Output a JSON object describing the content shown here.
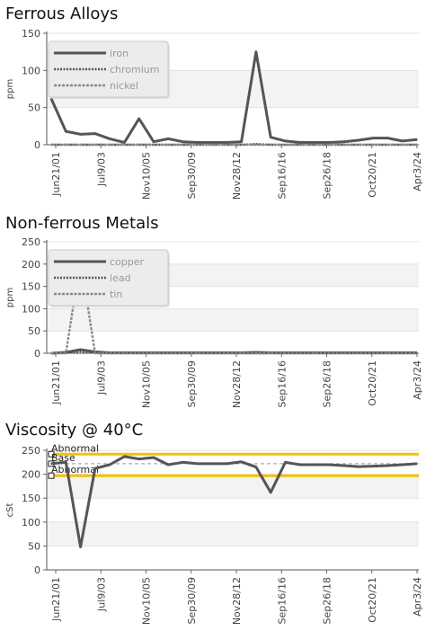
{
  "chart_data": [
    {
      "type": "line",
      "title": "Ferrous Alloys",
      "ylabel": "ppm",
      "ylim": [
        0,
        150
      ],
      "yticks": [
        0,
        50,
        100,
        150
      ],
      "x_tick_labels": [
        "Jun21/01",
        "Jul9/03",
        "Nov10/05",
        "Sep30/09",
        "Nov28/12",
        "Sep16/16",
        "Sep26/18",
        "Oct20/21",
        "Apr3/24"
      ],
      "legend_position": "top-left",
      "series": [
        {
          "name": "iron",
          "style": "solid",
          "color": "#555555",
          "values": [
            62,
            18,
            14,
            15,
            8,
            3,
            35,
            4,
            8,
            4,
            3,
            3,
            3,
            4,
            125,
            10,
            5,
            3,
            3,
            3,
            4,
            6,
            9,
            9,
            5,
            7
          ]
        },
        {
          "name": "chromium",
          "style": "dotted",
          "color": "#555555",
          "values": [
            0,
            0,
            0,
            0,
            0,
            0,
            0,
            0,
            0,
            0,
            0,
            0,
            0,
            0,
            1,
            0,
            0,
            0,
            0,
            0,
            0,
            0,
            0,
            0,
            0,
            0
          ]
        },
        {
          "name": "nickel",
          "style": "dashed",
          "color": "#888888",
          "values": [
            0,
            0,
            0,
            0,
            0,
            0,
            0,
            0,
            0,
            0,
            0,
            0,
            0,
            0,
            0,
            0,
            0,
            0,
            0,
            0,
            0,
            0,
            0,
            0,
            0,
            0
          ]
        }
      ]
    },
    {
      "type": "line",
      "title": "Non-ferrous Metals",
      "ylabel": "ppm",
      "ylim": [
        0,
        250
      ],
      "yticks": [
        0,
        50,
        100,
        150,
        200,
        250
      ],
      "x_tick_labels": [
        "Jun21/01",
        "Jul9/03",
        "Nov10/05",
        "Sep30/09",
        "Nov28/12",
        "Sep16/16",
        "Sep26/18",
        "Oct20/21",
        "Apr3/24"
      ],
      "legend_position": "top-left",
      "series": [
        {
          "name": "copper",
          "style": "solid",
          "color": "#555555",
          "values": [
            0,
            2,
            8,
            3,
            1,
            1,
            1,
            1,
            1,
            1,
            1,
            1,
            1,
            1,
            2,
            1,
            1,
            1,
            1,
            1,
            1,
            1,
            1,
            1,
            1,
            1
          ]
        },
        {
          "name": "lead",
          "style": "dotted",
          "color": "#555555",
          "values": [
            0,
            1,
            4,
            1,
            0,
            0,
            0,
            0,
            0,
            0,
            0,
            0,
            0,
            0,
            0,
            0,
            0,
            0,
            0,
            0,
            0,
            0,
            0,
            0,
            0,
            0
          ]
        },
        {
          "name": "tin",
          "style": "dashed",
          "color": "#888888",
          "values": [
            0,
            0,
            210,
            0,
            0,
            0,
            0,
            0,
            0,
            0,
            0,
            0,
            0,
            0,
            0,
            0,
            0,
            0,
            0,
            0,
            0,
            0,
            0,
            0,
            0,
            0
          ]
        }
      ]
    },
    {
      "type": "line",
      "title": "Viscosity @ 40°C",
      "ylabel": "cSt",
      "ylim": [
        0,
        250
      ],
      "yticks": [
        0,
        50,
        100,
        150,
        200,
        250
      ],
      "x_tick_labels": [
        "Jun21/01",
        "Jul9/03",
        "Nov10/05",
        "Sep30/09",
        "Nov28/12",
        "Sep16/16",
        "Sep26/18",
        "Oct20/21",
        "Apr3/24"
      ],
      "reference_lines": [
        {
          "label": "Abnormal",
          "value": 242,
          "color": "#f2c200"
        },
        {
          "label": "Base",
          "value": 222,
          "color": "#999999"
        },
        {
          "label": "Abnormal",
          "value": 197,
          "color": "#f2c200"
        }
      ],
      "series": [
        {
          "name": "",
          "style": "solid",
          "color": "#555555",
          "values": [
            222,
            225,
            48,
            212,
            220,
            237,
            232,
            235,
            220,
            225,
            222,
            222,
            222,
            226,
            215,
            162,
            225,
            220,
            220,
            220,
            218,
            216,
            217,
            218,
            220,
            222
          ]
        }
      ]
    }
  ]
}
